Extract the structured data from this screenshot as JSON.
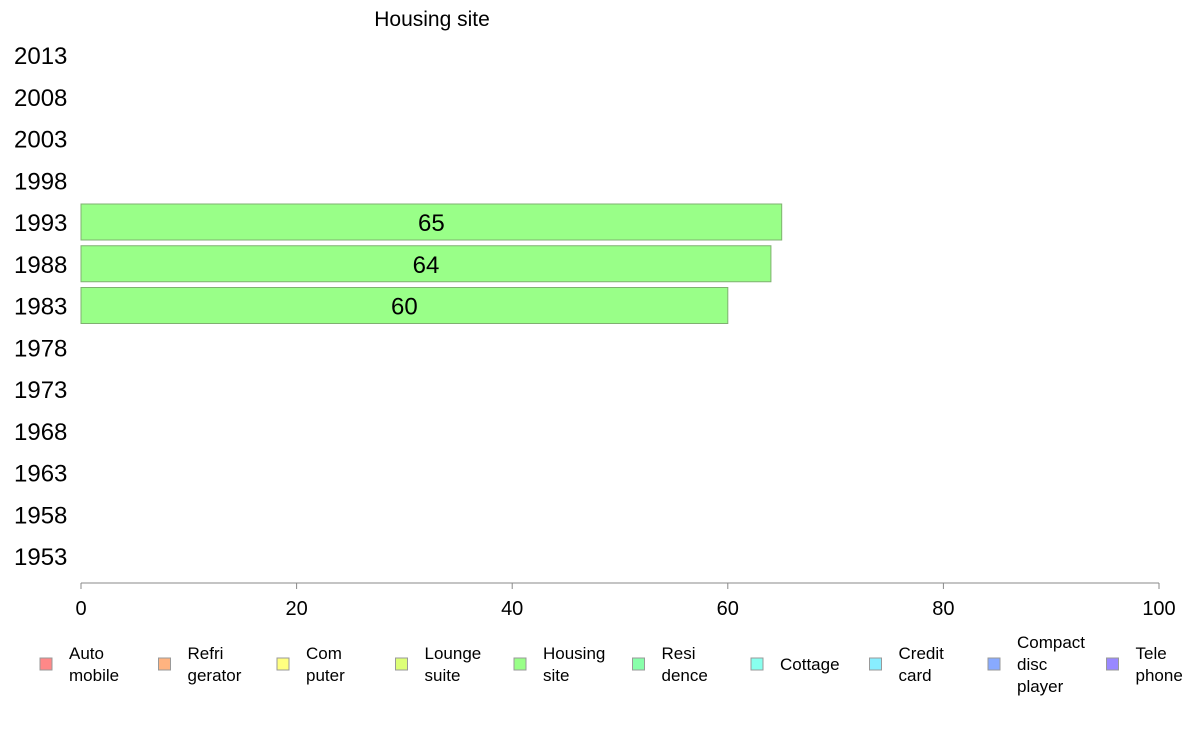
{
  "chart_data": {
    "type": "bar",
    "orientation": "horizontal",
    "title": "Housing site",
    "xlabel": "",
    "ylabel": "",
    "categories": [
      "2013",
      "2008",
      "2003",
      "1998",
      "1993",
      "1988",
      "1983",
      "1978",
      "1973",
      "1968",
      "1963",
      "1958",
      "1953"
    ],
    "series": [
      {
        "name": "Housing site",
        "color": "#99ff88",
        "values": [
          null,
          null,
          null,
          null,
          65,
          64,
          60,
          null,
          null,
          null,
          null,
          null,
          null
        ]
      }
    ],
    "xlim": [
      0,
      100
    ],
    "xticks": [
      "0",
      "20",
      "40",
      "60",
      "80",
      "100"
    ],
    "grid": false,
    "legend_position": "bottom",
    "legend": [
      {
        "lines": [
          "Auto",
          "mobile"
        ],
        "color": "#ff8888"
      },
      {
        "lines": [
          "Refri",
          "gerator"
        ],
        "color": "#ffb380"
      },
      {
        "lines": [
          "Com",
          "puter"
        ],
        "color": "#ffff80"
      },
      {
        "lines": [
          "Lounge",
          "suite"
        ],
        "color": "#ddff77"
      },
      {
        "lines": [
          "Housing",
          "site"
        ],
        "color": "#99ff88"
      },
      {
        "lines": [
          "Resi",
          "dence"
        ],
        "color": "#88ffaa"
      },
      {
        "lines": [
          "Cottage"
        ],
        "color": "#88ffee"
      },
      {
        "lines": [
          "Credit",
          "card"
        ],
        "color": "#88eeff"
      },
      {
        "lines": [
          "Compact",
          "disc",
          "player"
        ],
        "color": "#88aaff"
      },
      {
        "lines": [
          "Tele",
          "phone"
        ],
        "color": "#9988ff"
      }
    ]
  }
}
